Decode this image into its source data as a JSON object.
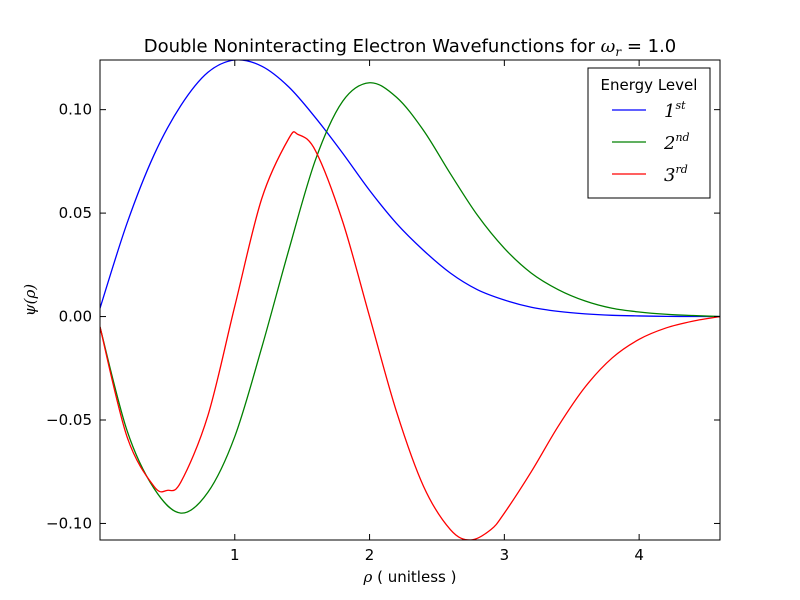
{
  "chart_data": {
    "type": "line",
    "title": {
      "text": "Double Noninteracting Electron Wavefunctions for ",
      "math_symbol": "ω",
      "math_sub": "r",
      "suffix": " = 1.0"
    },
    "xlabel": {
      "symbol": "ρ",
      "text": " ( unitless )"
    },
    "ylabel": {
      "text": "ψ(ρ)"
    },
    "xlim": [
      0.0,
      4.6
    ],
    "ylim": [
      -0.108,
      0.124
    ],
    "xticks": [
      1,
      2,
      3,
      4
    ],
    "xtick_labels": [
      "1",
      "2",
      "3",
      "4"
    ],
    "yticks": [
      -0.1,
      -0.05,
      0.0,
      0.05,
      0.1
    ],
    "ytick_labels": [
      "−0.10",
      "−0.05",
      "0.00",
      "0.05",
      "0.10"
    ],
    "grid": false,
    "legend": {
      "title": "Energy Level",
      "placement": "top-right",
      "entries": [
        {
          "base": "1",
          "sup": "st"
        },
        {
          "base": "2",
          "sup": "nd"
        },
        {
          "base": "3",
          "sup": "rd"
        }
      ]
    },
    "series": [
      {
        "color": "#0000ff",
        "x": [
          0.0,
          0.2,
          0.4,
          0.6,
          0.8,
          1.0,
          1.2,
          1.4,
          1.6,
          1.8,
          2.0,
          2.2,
          2.4,
          2.6,
          2.8,
          3.0,
          3.2,
          3.4,
          3.6,
          3.8,
          4.0,
          4.2,
          4.4,
          4.6
        ],
        "y": [
          0.004,
          0.045,
          0.078,
          0.102,
          0.118,
          0.124,
          0.121,
          0.111,
          0.096,
          0.079,
          0.061,
          0.045,
          0.032,
          0.021,
          0.013,
          0.008,
          0.0045,
          0.0025,
          0.0013,
          0.0006,
          0.0003,
          0.0001,
          5e-05,
          0.0
        ]
      },
      {
        "color": "#008000",
        "x": [
          0.0,
          0.2,
          0.4,
          0.6,
          0.8,
          1.0,
          1.2,
          1.4,
          1.6,
          1.8,
          2.0,
          2.2,
          2.4,
          2.6,
          2.8,
          3.0,
          3.2,
          3.4,
          3.6,
          3.8,
          4.0,
          4.2,
          4.4,
          4.6
        ],
        "y": [
          -0.005,
          -0.055,
          -0.083,
          -0.095,
          -0.085,
          -0.058,
          -0.015,
          0.032,
          0.076,
          0.104,
          0.113,
          0.106,
          0.09,
          0.069,
          0.049,
          0.033,
          0.021,
          0.013,
          0.0075,
          0.004,
          0.0022,
          0.0011,
          0.0005,
          0.0
        ]
      },
      {
        "color": "#ff0000",
        "x": [
          0.0,
          0.2,
          0.4,
          0.5,
          0.6,
          0.8,
          1.0,
          1.2,
          1.4,
          1.47,
          1.6,
          1.8,
          2.0,
          2.2,
          2.4,
          2.6,
          2.75,
          2.9,
          3.0,
          3.2,
          3.4,
          3.6,
          3.8,
          4.0,
          4.2,
          4.4,
          4.6
        ],
        "y": [
          -0.005,
          -0.058,
          -0.082,
          -0.084,
          -0.08,
          -0.048,
          0.005,
          0.057,
          0.086,
          0.088,
          0.08,
          0.046,
          0.0,
          -0.046,
          -0.082,
          -0.103,
          -0.108,
          -0.103,
          -0.095,
          -0.075,
          -0.053,
          -0.034,
          -0.02,
          -0.011,
          -0.0055,
          -0.0022,
          0.0
        ]
      }
    ]
  }
}
